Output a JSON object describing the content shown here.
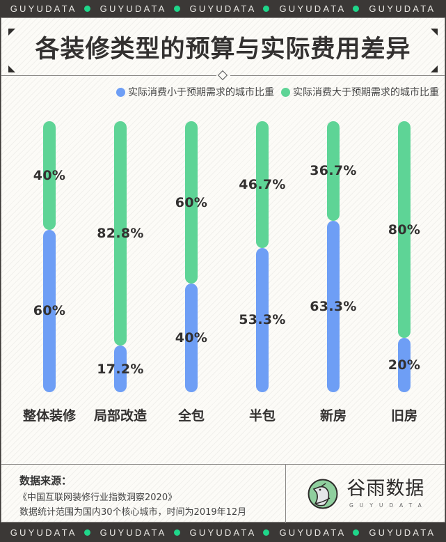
{
  "ticker": {
    "text": "GUYUDATA",
    "repeat": 5,
    "dot_color": "#1fd68a"
  },
  "header": {
    "title": "各装修类型的预算与实际费用差异"
  },
  "legend": [
    {
      "label": "实际消费小于预期需求的城市比重",
      "color": "#6e9ef5"
    },
    {
      "label": "实际消费大于预期需求的城市比重",
      "color": "#5ed496"
    }
  ],
  "chart_data": {
    "type": "bar",
    "orientation": "vertical-stacked-100",
    "title": "各装修类型的预算与实际费用差异",
    "xlabel": "",
    "ylabel": "",
    "ylim": [
      0,
      100
    ],
    "grid": false,
    "legend_position": "top-right",
    "categories": [
      "整体装修",
      "局部改造",
      "全包",
      "半包",
      "新房",
      "旧房"
    ],
    "series": [
      {
        "name": "实际消费小于预期需求的城市比重",
        "color": "#6e9ef5",
        "values": [
          60,
          17.2,
          40,
          53.3,
          63.3,
          20
        ],
        "labels": [
          "60%",
          "17.2%",
          "40%",
          "53.3%",
          "63.3%",
          "20%"
        ]
      },
      {
        "name": "实际消费大于预期需求的城市比重",
        "color": "#5ed496",
        "values": [
          40,
          82.8,
          60,
          46.7,
          36.7,
          80
        ],
        "labels": [
          "40%",
          "82.8%",
          "60%",
          "46.7%",
          "36.7%",
          "80%"
        ]
      }
    ]
  },
  "footer": {
    "source_heading": "数据来源：",
    "source_line1": "《中国互联网装修行业指数洞察2020》",
    "source_line2": "数据统计范围为国内30个核心城市，时间为2019年12月",
    "logo_cn": "谷雨数据",
    "logo_en": "GUYUDATA"
  }
}
